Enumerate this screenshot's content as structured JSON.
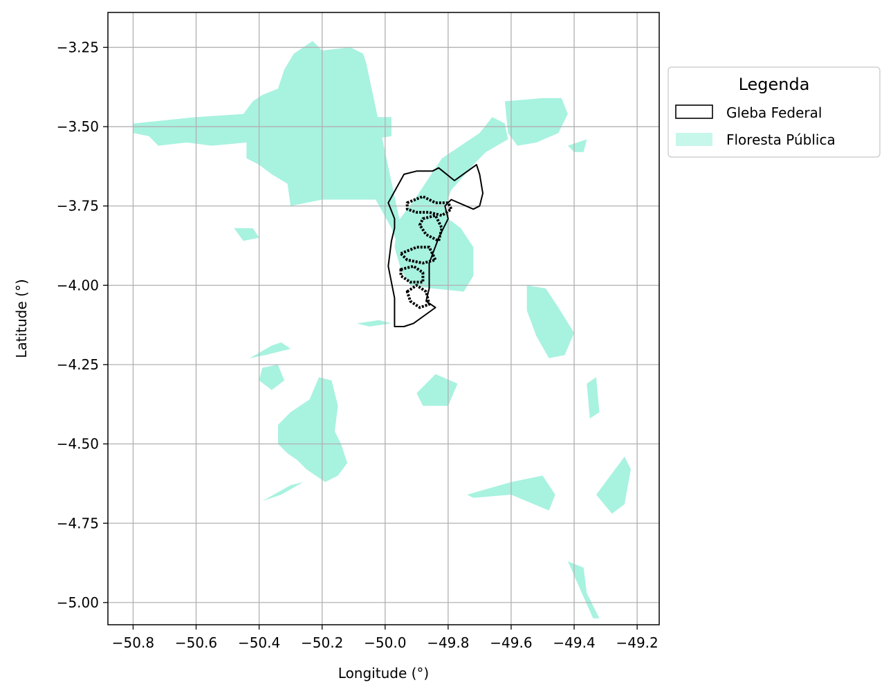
{
  "chart_data": {
    "type": "map",
    "xlabel": "Longitude (°)",
    "ylabel": "Latitude (°)",
    "xlim": [
      -50.88,
      -49.13
    ],
    "ylim": [
      -5.07,
      -3.14
    ],
    "xticks": [
      -50.8,
      -50.6,
      -50.4,
      -50.2,
      -50.0,
      -49.8,
      -49.6,
      -49.4,
      -49.2
    ],
    "xtick_labels": [
      "−50.8",
      "−50.6",
      "−50.4",
      "−50.2",
      "−50.0",
      "−49.8",
      "−49.6",
      "−49.4",
      "−49.2"
    ],
    "yticks": [
      -3.25,
      -3.5,
      -3.75,
      -4.0,
      -4.25,
      -4.5,
      -4.75,
      -5.0
    ],
    "ytick_labels": [
      "−3.25",
      "−3.50",
      "−3.75",
      "−4.00",
      "−4.25",
      "−4.50",
      "−4.75",
      "−5.00"
    ],
    "grid": true,
    "legend": {
      "title": "Legenda",
      "placement": "outside-upper-right",
      "entries": [
        {
          "label": "Gleba Federal",
          "style": "outline",
          "edge_color": "#000000",
          "fill_color": "#ffffff"
        },
        {
          "label": "Floresta Pública",
          "style": "fill",
          "fill_color": "#a8f2e0"
        }
      ]
    },
    "layers": {
      "floresta_publica": {
        "color": "#a8f2e0",
        "polygons": [
          {
            "id": "large-northwest-block",
            "lonlat": [
              [
                -50.8,
                -3.49
              ],
              [
                -50.7,
                -3.48
              ],
              [
                -50.6,
                -3.47
              ],
              [
                -50.45,
                -3.46
              ],
              [
                -50.42,
                -3.42
              ],
              [
                -50.39,
                -3.4
              ],
              [
                -50.34,
                -3.38
              ],
              [
                -50.32,
                -3.32
              ],
              [
                -50.29,
                -3.27
              ],
              [
                -50.23,
                -3.23
              ],
              [
                -50.2,
                -3.26
              ],
              [
                -50.11,
                -3.25
              ],
              [
                -50.07,
                -3.27
              ],
              [
                -50.06,
                -3.3
              ],
              [
                -49.94,
                -3.86
              ],
              [
                -49.93,
                -3.95
              ],
              [
                -49.98,
                -3.82
              ],
              [
                -50.03,
                -3.73
              ],
              [
                -50.2,
                -3.73
              ],
              [
                -50.3,
                -3.75
              ],
              [
                -50.31,
                -3.68
              ],
              [
                -50.36,
                -3.65
              ],
              [
                -50.4,
                -3.62
              ],
              [
                -50.44,
                -3.6
              ],
              [
                -50.44,
                -3.55
              ],
              [
                -50.55,
                -3.56
              ],
              [
                -50.63,
                -3.55
              ],
              [
                -50.72,
                -3.56
              ],
              [
                -50.75,
                -3.53
              ],
              [
                -50.8,
                -3.52
              ]
            ]
          },
          {
            "id": "northeast-wedge",
            "lonlat": [
              [
                -49.82,
                -3.6
              ],
              [
                -49.7,
                -3.52
              ],
              [
                -49.66,
                -3.47
              ],
              [
                -49.62,
                -3.49
              ],
              [
                -49.61,
                -3.54
              ],
              [
                -49.68,
                -3.58
              ],
              [
                -49.72,
                -3.62
              ],
              [
                -49.79,
                -3.7
              ],
              [
                -49.81,
                -3.75
              ],
              [
                -49.8,
                -3.79
              ],
              [
                -49.76,
                -3.82
              ],
              [
                -49.72,
                -3.88
              ],
              [
                -49.72,
                -3.97
              ],
              [
                -49.75,
                -4.02
              ],
              [
                -49.85,
                -4.01
              ],
              [
                -49.92,
                -4.0
              ],
              [
                -49.95,
                -3.95
              ],
              [
                -49.97,
                -3.88
              ],
              [
                -49.96,
                -3.8
              ],
              [
                -49.9,
                -3.72
              ],
              [
                -49.86,
                -3.66
              ]
            ]
          },
          {
            "id": "central-south-cluster",
            "lonlat": [
              [
                -50.21,
                -4.29
              ],
              [
                -50.17,
                -4.3
              ],
              [
                -50.15,
                -4.38
              ],
              [
                -50.16,
                -4.46
              ],
              [
                -50.14,
                -4.5
              ],
              [
                -50.12,
                -4.56
              ],
              [
                -50.15,
                -4.6
              ],
              [
                -50.19,
                -4.62
              ],
              [
                -50.25,
                -4.58
              ],
              [
                -50.28,
                -4.55
              ],
              [
                -50.31,
                -4.53
              ],
              [
                -50.34,
                -4.5
              ],
              [
                -50.34,
                -4.44
              ],
              [
                -50.3,
                -4.4
              ],
              [
                -50.24,
                -4.36
              ]
            ]
          },
          {
            "id": "sw-strip",
            "lonlat": [
              [
                -50.43,
                -4.23
              ],
              [
                -50.36,
                -4.19
              ],
              [
                -50.33,
                -4.18
              ],
              [
                -50.3,
                -4.2
              ],
              [
                -50.38,
                -4.22
              ]
            ]
          },
          {
            "id": "sw-small-block",
            "lonlat": [
              [
                -50.39,
                -4.26
              ],
              [
                -50.34,
                -4.25
              ],
              [
                -50.32,
                -4.3
              ],
              [
                -50.36,
                -4.33
              ],
              [
                -50.4,
                -4.3
              ]
            ]
          },
          {
            "id": "lower-left-streak",
            "lonlat": [
              [
                -50.39,
                -4.68
              ],
              [
                -50.3,
                -4.63
              ],
              [
                -50.26,
                -4.62
              ],
              [
                -50.33,
                -4.66
              ]
            ]
          },
          {
            "id": "east-upper-block",
            "lonlat": [
              [
                -49.62,
                -3.42
              ],
              [
                -49.5,
                -3.41
              ],
              [
                -49.44,
                -3.41
              ],
              [
                -49.42,
                -3.46
              ],
              [
                -49.45,
                -3.52
              ],
              [
                -49.52,
                -3.55
              ],
              [
                -49.58,
                -3.56
              ],
              [
                -49.61,
                -3.52
              ]
            ]
          },
          {
            "id": "east-upper-sliver",
            "lonlat": [
              [
                -49.42,
                -3.56
              ],
              [
                -49.36,
                -3.54
              ],
              [
                -49.37,
                -3.58
              ],
              [
                -49.4,
                -3.58
              ]
            ]
          },
          {
            "id": "nw-small-patches",
            "lonlat": [
              [
                -50.08,
                -3.41
              ],
              [
                -50.04,
                -3.41
              ],
              [
                -50.03,
                -3.45
              ],
              [
                -50.05,
                -3.46
              ]
            ]
          },
          {
            "id": "center-north-patch",
            "lonlat": [
              [
                -50.06,
                -3.47
              ],
              [
                -49.98,
                -3.47
              ],
              [
                -49.98,
                -3.53
              ],
              [
                -50.04,
                -3.54
              ]
            ]
          },
          {
            "id": "west-mid-patch",
            "lonlat": [
              [
                -50.48,
                -3.82
              ],
              [
                -50.42,
                -3.82
              ],
              [
                -50.4,
                -3.85
              ],
              [
                -50.45,
                -3.86
              ]
            ]
          },
          {
            "id": "center-mid-streak",
            "lonlat": [
              [
                -50.09,
                -4.12
              ],
              [
                -50.02,
                -4.11
              ],
              [
                -49.98,
                -4.12
              ],
              [
                -50.05,
                -4.13
              ]
            ]
          },
          {
            "id": "east-mid-column",
            "lonlat": [
              [
                -49.55,
                -4.0
              ],
              [
                -49.49,
                -4.01
              ],
              [
                -49.45,
                -4.07
              ],
              [
                -49.4,
                -4.15
              ],
              [
                -49.43,
                -4.22
              ],
              [
                -49.48,
                -4.23
              ],
              [
                -49.52,
                -4.16
              ],
              [
                -49.55,
                -4.08
              ]
            ]
          },
          {
            "id": "east-cluster",
            "lonlat": [
              [
                -49.9,
                -4.34
              ],
              [
                -49.84,
                -4.28
              ],
              [
                -49.77,
                -4.31
              ],
              [
                -49.8,
                -4.38
              ],
              [
                -49.88,
                -4.38
              ]
            ]
          },
          {
            "id": "east-streak",
            "lonlat": [
              [
                -49.74,
                -4.66
              ],
              [
                -49.6,
                -4.62
              ],
              [
                -49.5,
                -4.6
              ],
              [
                -49.46,
                -4.66
              ],
              [
                -49.48,
                -4.71
              ],
              [
                -49.6,
                -4.66
              ],
              [
                -49.72,
                -4.67
              ]
            ]
          },
          {
            "id": "far-east-streak",
            "lonlat": [
              [
                -49.36,
                -4.31
              ],
              [
                -49.33,
                -4.29
              ],
              [
                -49.32,
                -4.4
              ],
              [
                -49.35,
                -4.42
              ]
            ]
          },
          {
            "id": "far-east-lower",
            "lonlat": [
              [
                -49.33,
                -4.66
              ],
              [
                -49.24,
                -4.54
              ],
              [
                -49.22,
                -4.58
              ],
              [
                -49.24,
                -4.69
              ],
              [
                -49.28,
                -4.72
              ]
            ]
          },
          {
            "id": "south-tail",
            "lonlat": [
              [
                -49.42,
                -4.87
              ],
              [
                -49.37,
                -4.89
              ],
              [
                -49.36,
                -4.97
              ],
              [
                -49.32,
                -5.05
              ],
              [
                -49.34,
                -5.05
              ],
              [
                -49.38,
                -4.96
              ]
            ]
          }
        ]
      },
      "gleba_federal": {
        "color": "#000000",
        "outline_lonlat": [
          [
            -49.99,
            -3.74
          ],
          [
            -49.94,
            -3.65
          ],
          [
            -49.9,
            -3.64
          ],
          [
            -49.85,
            -3.64
          ],
          [
            -49.83,
            -3.63
          ],
          [
            -49.78,
            -3.67
          ],
          [
            -49.71,
            -3.62
          ],
          [
            -49.7,
            -3.65
          ],
          [
            -49.69,
            -3.71
          ],
          [
            -49.7,
            -3.75
          ],
          [
            -49.72,
            -3.76
          ],
          [
            -49.79,
            -3.73
          ],
          [
            -49.81,
            -3.75
          ],
          [
            -49.8,
            -3.79
          ],
          [
            -49.83,
            -3.85
          ],
          [
            -49.86,
            -3.93
          ],
          [
            -49.86,
            -4.01
          ],
          [
            -49.87,
            -4.05
          ],
          [
            -49.84,
            -4.07
          ],
          [
            -49.91,
            -4.12
          ],
          [
            -49.94,
            -4.13
          ],
          [
            -49.97,
            -4.13
          ],
          [
            -49.97,
            -4.04
          ],
          [
            -49.99,
            -3.94
          ],
          [
            -49.98,
            -3.86
          ],
          [
            -49.97,
            -3.82
          ],
          [
            -49.97,
            -3.79
          ],
          [
            -49.99,
            -3.74
          ]
        ],
        "inner_parcels": [
          {
            "id": "parcel-1",
            "lonlat": [
              [
                -49.93,
                -3.74
              ],
              [
                -49.88,
                -3.72
              ],
              [
                -49.84,
                -3.74
              ],
              [
                -49.8,
                -3.74
              ],
              [
                -49.79,
                -3.76
              ],
              [
                -49.82,
                -3.78
              ],
              [
                -49.86,
                -3.77
              ],
              [
                -49.9,
                -3.77
              ],
              [
                -49.93,
                -3.76
              ]
            ]
          },
          {
            "id": "parcel-2",
            "lonlat": [
              [
                -49.88,
                -3.79
              ],
              [
                -49.84,
                -3.78
              ],
              [
                -49.82,
                -3.82
              ],
              [
                -49.83,
                -3.86
              ],
              [
                -49.87,
                -3.84
              ],
              [
                -49.89,
                -3.81
              ]
            ]
          },
          {
            "id": "parcel-3",
            "lonlat": [
              [
                -49.95,
                -3.9
              ],
              [
                -49.9,
                -3.88
              ],
              [
                -49.86,
                -3.88
              ],
              [
                -49.84,
                -3.92
              ],
              [
                -49.88,
                -3.93
              ],
              [
                -49.93,
                -3.92
              ]
            ]
          },
          {
            "id": "parcel-4",
            "lonlat": [
              [
                -49.95,
                -3.95
              ],
              [
                -49.91,
                -3.94
              ],
              [
                -49.88,
                -3.96
              ],
              [
                -49.88,
                -3.99
              ],
              [
                -49.92,
                -3.99
              ],
              [
                -49.95,
                -3.97
              ]
            ]
          },
          {
            "id": "parcel-5",
            "lonlat": [
              [
                -49.93,
                -4.02
              ],
              [
                -49.9,
                -4.0
              ],
              [
                -49.87,
                -4.02
              ],
              [
                -49.86,
                -4.06
              ],
              [
                -49.89,
                -4.07
              ],
              [
                -49.92,
                -4.05
              ]
            ]
          }
        ]
      }
    }
  }
}
